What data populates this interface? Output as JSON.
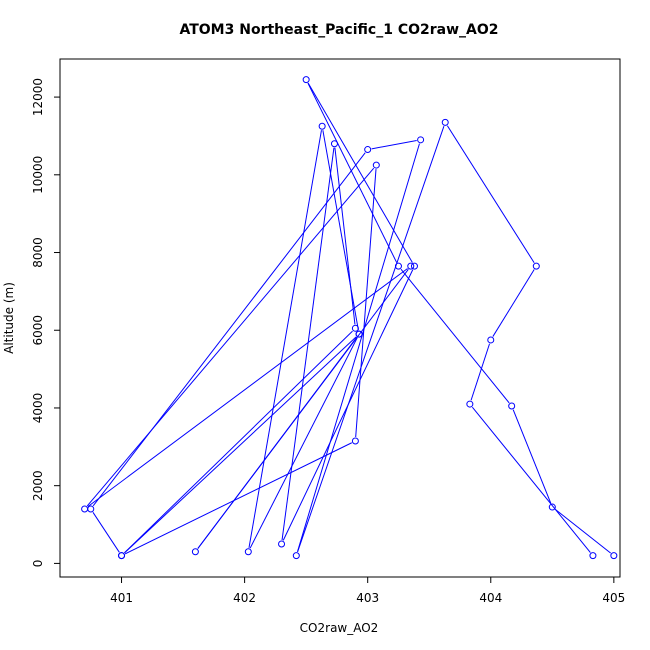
{
  "chart_data": {
    "type": "line",
    "title": "ATOM3 Northeast_Pacific_1 CO2raw_AO2",
    "xlabel": "CO2raw_AO2",
    "ylabel": "Altitude (m)",
    "xlim": [
      400.5,
      405.05
    ],
    "ylim": [
      -350,
      12980
    ],
    "xticks": [
      401,
      402,
      403,
      404,
      405
    ],
    "yticks": [
      0,
      2000,
      4000,
      6000,
      8000,
      10000,
      12000
    ],
    "grid": false,
    "color": "#0000ff",
    "series": [
      {
        "points": [
          [
            405.0,
            200
          ],
          [
            404.5,
            1450
          ],
          [
            404.17,
            4050
          ],
          [
            403.25,
            7650
          ],
          [
            402.5,
            12450
          ],
          [
            403.38,
            7650
          ],
          [
            402.3,
            500
          ],
          [
            402.73,
            10800
          ],
          [
            402.9,
            6050
          ],
          [
            401.0,
            200
          ],
          [
            402.93,
            5900
          ],
          [
            402.03,
            300
          ],
          [
            402.63,
            11250
          ],
          [
            402.93,
            5900
          ],
          [
            401.6,
            300
          ],
          [
            403.35,
            7650
          ],
          [
            400.7,
            1400
          ],
          [
            403.07,
            10250
          ],
          [
            402.9,
            3150
          ],
          [
            401.0,
            200
          ],
          [
            400.75,
            1400
          ],
          [
            403.0,
            10650
          ],
          [
            403.43,
            10900
          ],
          [
            402.42,
            200
          ],
          [
            403.63,
            11350
          ],
          [
            404.37,
            7650
          ],
          [
            404.0,
            5750
          ],
          [
            403.83,
            4100
          ],
          [
            404.83,
            200
          ]
        ]
      }
    ]
  }
}
